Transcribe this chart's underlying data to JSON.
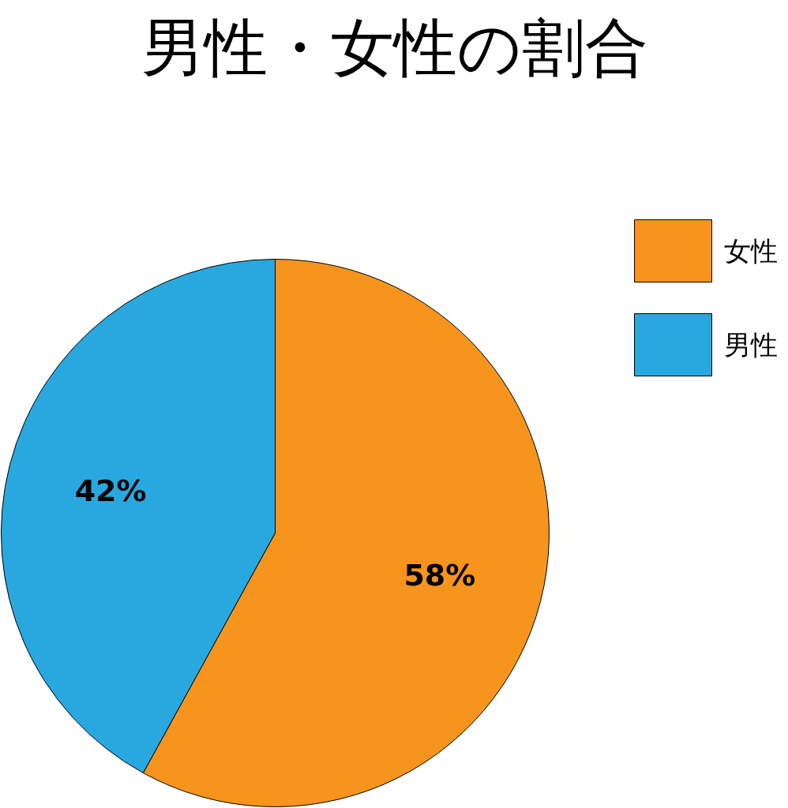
{
  "chart_data": {
    "type": "pie",
    "title": "男性・女性の割合",
    "categories": [
      "女性",
      "男性"
    ],
    "values": [
      58,
      42
    ],
    "colors": [
      "#f7941d",
      "#29a8e0"
    ],
    "value_labels": [
      "58%",
      "42%"
    ],
    "legend": "top right"
  }
}
